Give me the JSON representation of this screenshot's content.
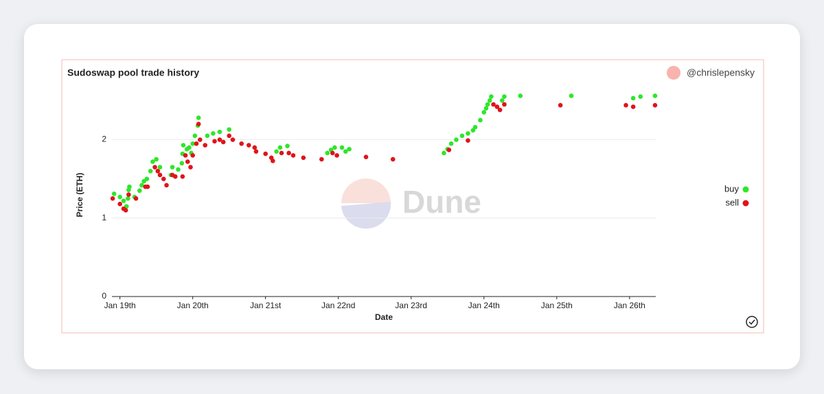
{
  "author": "@chrislepensky",
  "watermark": "Dune",
  "chart_data": {
    "type": "scatter",
    "title": "Sudoswap pool trade history",
    "xlabel": "Date",
    "ylabel": "Price (ETH)",
    "xlim": [
      18.89,
      26.36
    ],
    "ylim": [
      0,
      2.6
    ],
    "xticks": [
      {
        "value": 19,
        "label": "Jan 19th"
      },
      {
        "value": 20,
        "label": "Jan 20th"
      },
      {
        "value": 21,
        "label": "Jan 21st"
      },
      {
        "value": 22,
        "label": "Jan 22nd"
      },
      {
        "value": 23,
        "label": "Jan 23rd"
      },
      {
        "value": 24,
        "label": "Jan 24th"
      },
      {
        "value": 25,
        "label": "Jan 25th"
      },
      {
        "value": 26,
        "label": "Jan 26th"
      }
    ],
    "yticks": [
      0,
      1,
      2
    ],
    "grid": true,
    "legend": "right",
    "series": [
      {
        "name": "buy",
        "color": "#2ee62a",
        "x": [
          18.92,
          19.0,
          19.05,
          19.09,
          19.11,
          19.12,
          19.13,
          19.2,
          19.27,
          19.3,
          19.33,
          19.37,
          19.42,
          19.45,
          19.5,
          19.55,
          19.7,
          19.72,
          19.8,
          19.85,
          19.86,
          19.87,
          19.92,
          19.95,
          19.98,
          20.0,
          20.03,
          20.07,
          20.08,
          20.2,
          20.28,
          20.37,
          20.5,
          21.15,
          21.2,
          21.3,
          21.85,
          21.9,
          21.95,
          22.05,
          22.1,
          22.15,
          23.45,
          23.5,
          23.55,
          23.62,
          23.7,
          23.78,
          23.85,
          23.88,
          23.95,
          24.0,
          24.03,
          24.05,
          24.08,
          24.1,
          24.25,
          24.28,
          24.5,
          25.2,
          26.05,
          26.15,
          26.35
        ],
        "values": [
          1.31,
          1.27,
          1.22,
          1.15,
          1.25,
          1.36,
          1.4,
          1.27,
          1.35,
          1.42,
          1.47,
          1.5,
          1.6,
          1.72,
          1.75,
          1.65,
          1.55,
          1.65,
          1.62,
          1.7,
          1.82,
          1.93,
          1.88,
          1.9,
          1.83,
          1.95,
          2.05,
          2.18,
          2.28,
          2.05,
          2.08,
          2.1,
          2.13,
          1.85,
          1.9,
          1.92,
          1.83,
          1.87,
          1.9,
          1.9,
          1.85,
          1.88,
          1.83,
          1.88,
          1.95,
          2.0,
          2.05,
          2.08,
          2.12,
          2.16,
          2.25,
          2.35,
          2.4,
          2.45,
          2.5,
          2.55,
          2.5,
          2.55,
          2.56,
          2.56,
          2.53,
          2.55,
          2.56
        ]
      },
      {
        "name": "sell",
        "color": "#e0141a",
        "x": [
          18.9,
          19.0,
          19.05,
          19.08,
          19.12,
          19.22,
          19.35,
          19.38,
          19.48,
          19.52,
          19.55,
          19.6,
          19.64,
          19.72,
          19.76,
          19.86,
          19.9,
          19.93,
          19.97,
          20.0,
          20.05,
          20.08,
          20.1,
          20.17,
          20.3,
          20.37,
          20.42,
          20.5,
          20.55,
          20.67,
          20.77,
          20.85,
          20.87,
          21.0,
          21.08,
          21.1,
          21.22,
          21.32,
          21.38,
          21.52,
          21.77,
          21.92,
          21.98,
          22.38,
          22.75,
          23.52,
          23.78,
          24.13,
          24.18,
          24.22,
          24.28,
          25.05,
          25.95,
          26.05,
          26.35
        ],
        "values": [
          1.25,
          1.18,
          1.12,
          1.1,
          1.3,
          1.25,
          1.4,
          1.4,
          1.65,
          1.6,
          1.55,
          1.5,
          1.42,
          1.55,
          1.53,
          1.53,
          1.8,
          1.72,
          1.65,
          1.8,
          1.95,
          2.2,
          2.0,
          1.93,
          1.98,
          2.0,
          1.97,
          2.05,
          2.0,
          1.95,
          1.93,
          1.9,
          1.85,
          1.82,
          1.77,
          1.73,
          1.83,
          1.83,
          1.8,
          1.77,
          1.75,
          1.83,
          1.8,
          1.78,
          1.75,
          1.87,
          1.99,
          2.45,
          2.42,
          2.38,
          2.45,
          2.44,
          2.44,
          2.42,
          2.44
        ]
      }
    ]
  }
}
